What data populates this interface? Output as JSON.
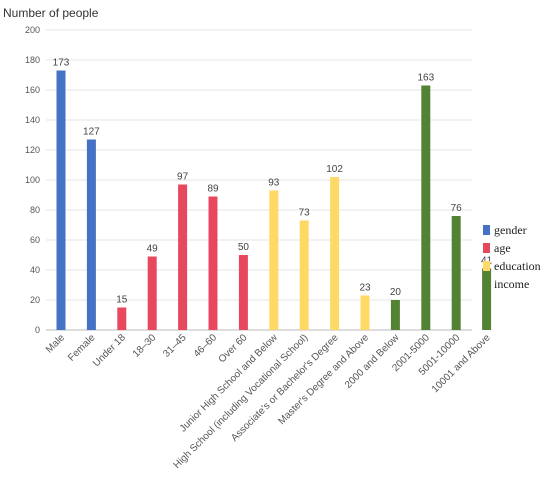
{
  "chart_data": {
    "type": "bar",
    "ylabel": "Number of people",
    "ylim": [
      0,
      200
    ],
    "yticks": [
      0,
      20,
      40,
      60,
      80,
      100,
      120,
      140,
      160,
      180,
      200
    ],
    "grid": "horizontal",
    "legend_position": "right",
    "categories": [
      "Male",
      "Female",
      "Under 18",
      "18–30",
      "31–45",
      "46–60",
      "Over 60",
      "Junior High School and Below",
      "High School (including Vocational School)",
      "Associate's or Bachelor's Degree",
      "Master's Degree and Above",
      "2000 and Below",
      "2001-5000",
      "5001-10000",
      "10001 and Above"
    ],
    "values": [
      173,
      127,
      15,
      49,
      97,
      89,
      50,
      93,
      73,
      102,
      23,
      20,
      163,
      76,
      41
    ],
    "groups": [
      "gender",
      "gender",
      "age",
      "age",
      "age",
      "age",
      "age",
      "education",
      "education",
      "education",
      "education",
      "income",
      "income",
      "income",
      "income"
    ],
    "series": [
      {
        "name": "gender",
        "color": "#4472C4"
      },
      {
        "name": "age",
        "color": "#E8485E"
      },
      {
        "name": "education",
        "color": "#FFD966"
      },
      {
        "name": "income",
        "color": "#548235"
      }
    ]
  }
}
